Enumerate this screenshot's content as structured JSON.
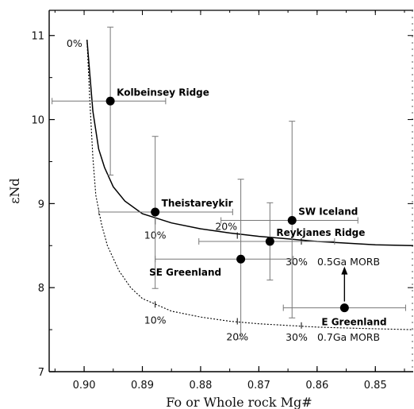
{
  "chart_data": {
    "type": "scatter",
    "title": "",
    "xlabel": "Fo or Whole rock Mg#",
    "ylabel": "εNd",
    "xlim": [
      0.906,
      0.8435
    ],
    "ylim": [
      7,
      11.3
    ],
    "x_reversed": true,
    "xticks": [
      {
        "value": 0.9,
        "label": "0.90"
      },
      {
        "value": 0.89,
        "label": "0.89"
      },
      {
        "value": 0.88,
        "label": "0.88"
      },
      {
        "value": 0.87,
        "label": "0.87"
      },
      {
        "value": 0.86,
        "label": "0.86"
      },
      {
        "value": 0.85,
        "label": "0.85"
      }
    ],
    "yticks": [
      {
        "value": 7,
        "label": "7"
      },
      {
        "value": 8,
        "label": "8"
      },
      {
        "value": 9,
        "label": "9"
      },
      {
        "value": 10,
        "label": "10"
      },
      {
        "value": 11,
        "label": "11"
      }
    ],
    "points": [
      {
        "name": "Kolbeinsey Ridge",
        "x": 0.8955,
        "y": 10.22,
        "xerr": [
          0.9055,
          0.886
        ],
        "yerr": [
          9.34,
          11.1
        ],
        "label_pos": "upper-right"
      },
      {
        "name": "Theistareykir",
        "x": 0.8878,
        "y": 8.9,
        "xerr": [
          0.8975,
          0.8745
        ],
        "yerr": [
          7.99,
          9.8
        ],
        "label_pos": "upper-right"
      },
      {
        "name": "SW Iceland",
        "x": 0.8643,
        "y": 8.8,
        "xerr": [
          0.8765,
          0.853
        ],
        "yerr": [
          7.64,
          9.98
        ],
        "label_pos": "upper-right"
      },
      {
        "name": "Reykjanes Ridge",
        "x": 0.8681,
        "y": 8.55,
        "xerr": [
          0.8803,
          0.857
        ],
        "yerr": [
          8.09,
          9.01
        ],
        "label_pos": "upper-right"
      },
      {
        "name": "SE Greenland",
        "x": 0.8731,
        "y": 8.34,
        "xerr": [
          0.8878,
          0.8641
        ],
        "yerr": [
          7.39,
          9.29
        ],
        "label_pos": "lower-left"
      },
      {
        "name": "E Greenland",
        "x": 0.8553,
        "y": 7.76,
        "xerr": [
          0.8658,
          0.8448
        ],
        "yerr": [
          7.76,
          7.76
        ],
        "label_pos": "below",
        "lower_limit_arrow": true
      }
    ],
    "curves": [
      {
        "name": "0.5Ga MORB",
        "style": "solid",
        "x": [
          0.8995,
          0.8985,
          0.8975,
          0.8965,
          0.895,
          0.893,
          0.89,
          0.885,
          0.88,
          0.875,
          0.87,
          0.865,
          0.86,
          0.855,
          0.85,
          0.8435
        ],
        "y": [
          10.95,
          10.1,
          9.65,
          9.43,
          9.2,
          9.03,
          8.88,
          8.77,
          8.7,
          8.65,
          8.61,
          8.58,
          8.55,
          8.53,
          8.51,
          8.5
        ],
        "percent_marks": [
          {
            "label": "0%",
            "x": 0.8995,
            "y": 10.95
          },
          {
            "label": "10%",
            "x": 0.8878,
            "y": 8.79
          },
          {
            "label": "20%",
            "x": 0.8737,
            "y": 8.62
          },
          {
            "label": "30%",
            "x": 0.8627,
            "y": 8.55
          }
        ]
      },
      {
        "name": "0.7Ga MORB",
        "style": "dotted",
        "x": [
          0.8995,
          0.899,
          0.8985,
          0.898,
          0.897,
          0.896,
          0.894,
          0.892,
          0.89,
          0.885,
          0.88,
          0.875,
          0.87,
          0.865,
          0.86,
          0.855,
          0.85,
          0.8435
        ],
        "y": [
          10.95,
          10.2,
          9.55,
          9.1,
          8.75,
          8.5,
          8.2,
          8.0,
          7.87,
          7.72,
          7.65,
          7.6,
          7.57,
          7.55,
          7.53,
          7.52,
          7.51,
          7.5
        ],
        "percent_marks": [
          {
            "label": "10%",
            "x": 0.8878,
            "y": 7.8
          },
          {
            "label": "20%",
            "x": 0.8737,
            "y": 7.6
          },
          {
            "label": "30%",
            "x": 0.8627,
            "y": 7.55
          }
        ]
      }
    ],
    "grid": false,
    "legend": "none"
  }
}
